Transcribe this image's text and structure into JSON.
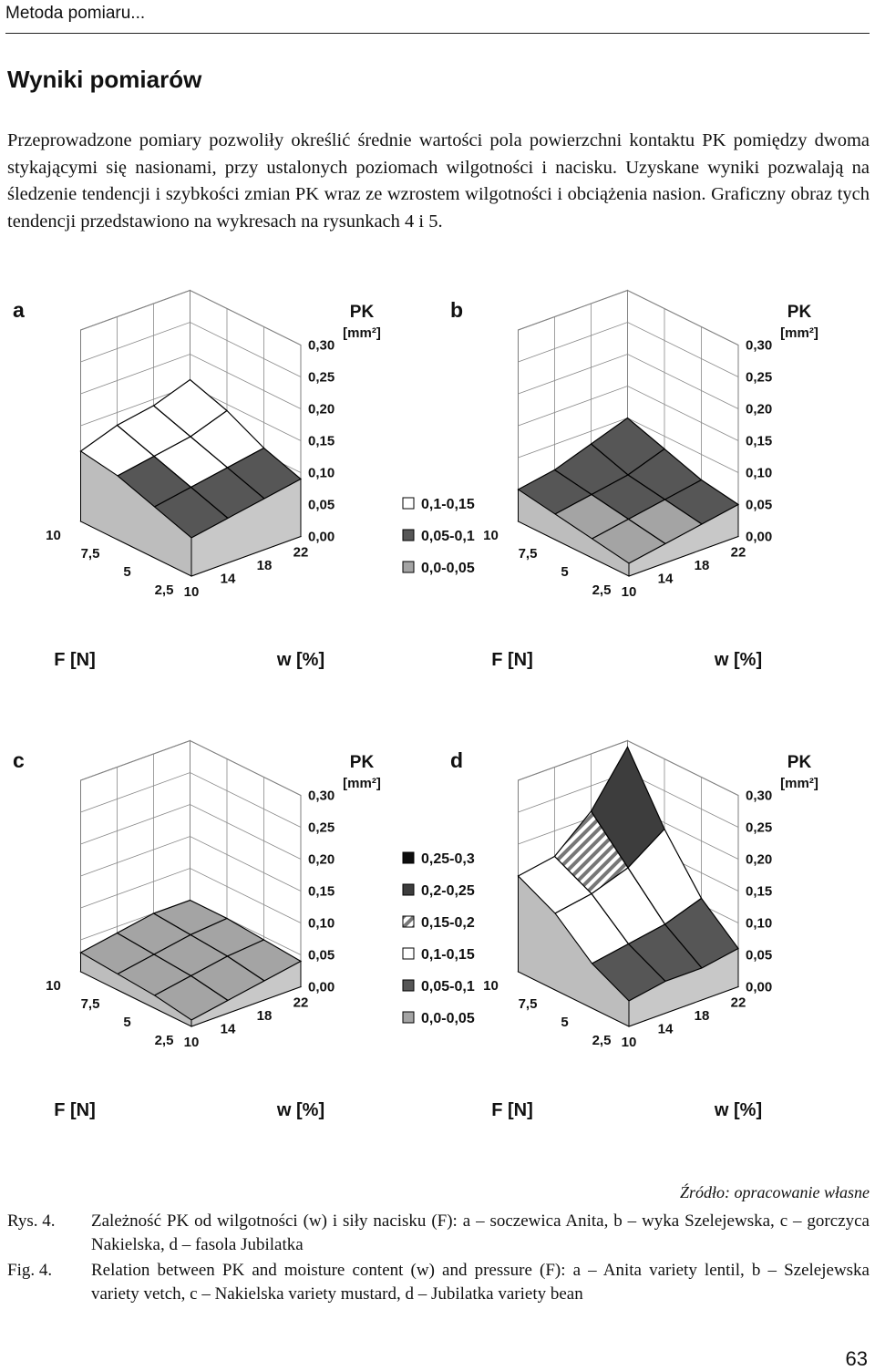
{
  "header": {
    "running_title": "Metoda pomiaru..."
  },
  "section": {
    "title": "Wyniki pomiarów"
  },
  "body": {
    "paragraph": "Przeprowadzone pomiary pozwoliły określić średnie wartości pola powierzchni kontaktu PK pomiędzy dwoma stykającymi się nasionami, przy ustalonych poziomach wilgotności i nacisku. Uzyskane wyniki pozwalają na śledzenie tendencji i szybkości zmian PK wraz ze wzrostem wilgotności i obciążenia nasion. Graficzny obraz tych tendencji przedstawiono na wykresach na rysunkach 4 i 5."
  },
  "chart_data": [
    {
      "type": "surface",
      "panel": "a",
      "zlabel_line1": "PK",
      "zlabel_line2": "[mm²]",
      "xlabel": "w [%]",
      "ylabel": "F [N]",
      "z_ticks": [
        "0,00",
        "0,05",
        "0,10",
        "0,15",
        "0,20",
        "0,25",
        "0,30"
      ],
      "w_ticks": [
        "10",
        "14",
        "18",
        "22"
      ],
      "f_ticks": [
        "2,5",
        "5",
        "7,5",
        "10"
      ],
      "zlim": [
        0,
        0.3
      ],
      "grid": [
        [
          0.06,
          0.07,
          0.08,
          0.09
        ],
        [
          0.08,
          0.09,
          0.1,
          0.11
        ],
        [
          0.1,
          0.11,
          0.12,
          0.14
        ],
        [
          0.11,
          0.13,
          0.14,
          0.16
        ]
      ],
      "legend": [
        "0,1-0,15",
        "0,05-0,1",
        "0,0-0,05"
      ]
    },
    {
      "type": "surface",
      "panel": "b",
      "zlabel_line1": "PK",
      "zlabel_line2": "[mm²]",
      "xlabel": "w [%]",
      "ylabel": "F [N]",
      "z_ticks": [
        "0,00",
        "0,05",
        "0,10",
        "0,15",
        "0,20",
        "0,25",
        "0,30"
      ],
      "w_ticks": [
        "10",
        "14",
        "18",
        "22"
      ],
      "f_ticks": [
        "2,5",
        "5",
        "7,5",
        "10"
      ],
      "zlim": [
        0,
        0.3
      ],
      "grid": [
        [
          0.02,
          0.03,
          0.04,
          0.05
        ],
        [
          0.03,
          0.04,
          0.05,
          0.06
        ],
        [
          0.04,
          0.05,
          0.06,
          0.08
        ],
        [
          0.05,
          0.06,
          0.08,
          0.1
        ]
      ]
    },
    {
      "type": "surface",
      "panel": "c",
      "zlabel_line1": "PK",
      "zlabel_line2": "[mm²]",
      "xlabel": "w [%]",
      "ylabel": "F [N]",
      "z_ticks": [
        "0,00",
        "0,05",
        "0,10",
        "0,15",
        "0,20",
        "0,25",
        "0,30"
      ],
      "w_ticks": [
        "10",
        "14",
        "18",
        "22"
      ],
      "f_ticks": [
        "2,5",
        "5",
        "7,5",
        "10"
      ],
      "zlim": [
        0,
        0.3
      ],
      "grid": [
        [
          0.01,
          0.02,
          0.03,
          0.04
        ],
        [
          0.02,
          0.03,
          0.04,
          0.045
        ],
        [
          0.025,
          0.035,
          0.045,
          0.05
        ],
        [
          0.03,
          0.04,
          0.05,
          0.05
        ]
      ],
      "legend": [
        "0,25-0,3",
        "0,2-0,25",
        "0,15-0,2",
        "0,1-0,15",
        "0,05-0,1",
        "0,0-0,05"
      ]
    },
    {
      "type": "surface",
      "panel": "d",
      "zlabel_line1": "PK",
      "zlabel_line2": "[mm²]",
      "xlabel": "w [%]",
      "ylabel": "F [N]",
      "z_ticks": [
        "0,00",
        "0,05",
        "0,10",
        "0,15",
        "0,20",
        "0,25",
        "0,30"
      ],
      "w_ticks": [
        "10",
        "14",
        "18",
        "22"
      ],
      "f_ticks": [
        "2,5",
        "5",
        "7,5",
        "10"
      ],
      "zlim": [
        0,
        0.3
      ],
      "grid": [
        [
          0.04,
          0.05,
          0.05,
          0.06
        ],
        [
          0.07,
          0.08,
          0.09,
          0.11
        ],
        [
          0.12,
          0.13,
          0.15,
          0.19
        ],
        [
          0.15,
          0.16,
          0.21,
          0.29
        ]
      ]
    }
  ],
  "figure": {
    "source": "Źródło: opracowanie własne",
    "rys_label": "Rys. 4.",
    "rys_text": "Zależność PK od wilgotności (w) i siły nacisku (F): a – soczewica Anita, b – wyka Szelejewska, c – gorczyca Nakielska, d – fasola Jubilatka",
    "fig_label": "Fig. 4.",
    "fig_text": "Relation between PK and moisture content (w) and pressure (F): a – Anita variety lentil, b – Szelejewska variety vetch, c – Nakielska variety mustard, d – Jubilatka variety bean"
  },
  "page": {
    "number": "63"
  }
}
